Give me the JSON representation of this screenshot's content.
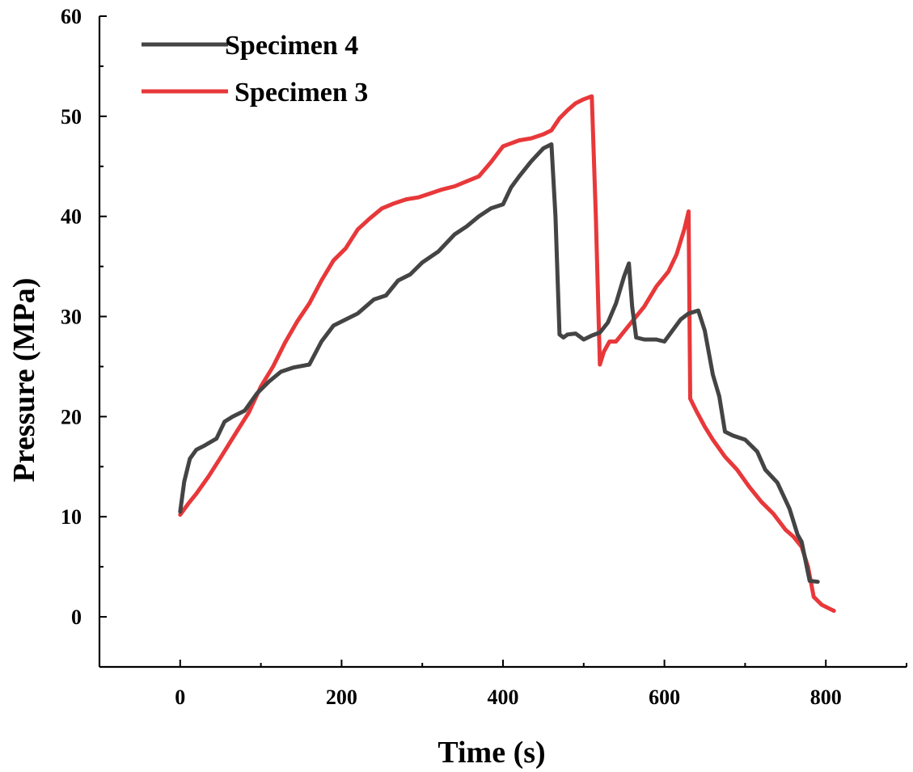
{
  "chart_data": {
    "type": "line",
    "title": "",
    "xlabel": "Time (s)",
    "ylabel": "Pressure (MPa)",
    "xlim": [
      -100,
      900
    ],
    "ylim": [
      -5,
      60
    ],
    "xticks": [
      0,
      200,
      400,
      600,
      800
    ],
    "yticks": [
      0,
      10,
      20,
      30,
      40,
      50,
      60
    ],
    "legend_position": "top-left",
    "series": [
      {
        "name": "Specimen 4",
        "color": "#444444",
        "x": [
          0,
          5,
          12,
          20,
          30,
          45,
          55,
          65,
          80,
          95,
          110,
          125,
          140,
          160,
          175,
          190,
          205,
          220,
          240,
          255,
          270,
          285,
          300,
          320,
          340,
          355,
          370,
          385,
          400,
          410,
          420,
          435,
          450,
          460,
          465,
          470,
          475,
          480,
          490,
          500,
          510,
          520,
          530,
          540,
          550,
          556,
          560,
          565,
          575,
          590,
          600,
          610,
          620,
          630,
          642,
          650,
          660,
          668,
          675,
          685,
          700,
          715,
          725,
          740,
          755,
          765,
          770,
          780,
          790
        ],
        "y": [
          10.5,
          13.5,
          15.8,
          16.7,
          17.1,
          17.8,
          19.5,
          20.0,
          20.6,
          22.3,
          23.5,
          24.5,
          24.9,
          25.2,
          27.5,
          29.1,
          29.7,
          30.3,
          31.7,
          32.1,
          33.6,
          34.2,
          35.4,
          36.5,
          38.2,
          39.0,
          40.0,
          40.8,
          41.2,
          42.9,
          44.0,
          45.5,
          46.8,
          47.2,
          40.0,
          28.2,
          27.9,
          28.2,
          28.3,
          27.7,
          28.1,
          28.4,
          29.4,
          31.3,
          34.0,
          35.3,
          31.0,
          27.9,
          27.7,
          27.7,
          27.5,
          28.6,
          29.7,
          30.3,
          30.6,
          28.6,
          24.2,
          22.0,
          18.5,
          18.1,
          17.7,
          16.5,
          14.7,
          13.4,
          10.8,
          8.2,
          7.5,
          3.6,
          3.5
        ]
      },
      {
        "name": "Specimen 3",
        "color": "#e8383a",
        "x": [
          0,
          10,
          20,
          35,
          50,
          70,
          85,
          100,
          115,
          130,
          145,
          160,
          175,
          190,
          205,
          220,
          235,
          250,
          265,
          280,
          295,
          310,
          325,
          340,
          355,
          370,
          385,
          400,
          410,
          420,
          435,
          450,
          460,
          470,
          480,
          490,
          500,
          510,
          515,
          520,
          525,
          532,
          540,
          550,
          560,
          575,
          590,
          605,
          615,
          625,
          630,
          632,
          640,
          650,
          660,
          675,
          690,
          705,
          720,
          735,
          750,
          760,
          770,
          778,
          785,
          795,
          805,
          810
        ],
        "y": [
          10.2,
          11.3,
          12.3,
          14.0,
          15.9,
          18.5,
          20.4,
          23.0,
          25.0,
          27.4,
          29.5,
          31.3,
          33.6,
          35.6,
          36.8,
          38.7,
          39.8,
          40.8,
          41.3,
          41.7,
          41.9,
          42.3,
          42.7,
          43.0,
          43.5,
          44.0,
          45.4,
          47.0,
          47.3,
          47.6,
          47.8,
          48.2,
          48.6,
          49.8,
          50.6,
          51.3,
          51.7,
          52.0,
          40.0,
          25.2,
          26.5,
          27.5,
          27.5,
          28.5,
          29.5,
          31.0,
          33.0,
          34.5,
          36.2,
          38.8,
          40.5,
          21.8,
          20.5,
          19.0,
          17.7,
          16.0,
          14.7,
          13.0,
          11.5,
          10.3,
          8.7,
          8.0,
          7.0,
          5.0,
          2.0,
          1.2,
          0.8,
          0.6
        ]
      }
    ]
  }
}
